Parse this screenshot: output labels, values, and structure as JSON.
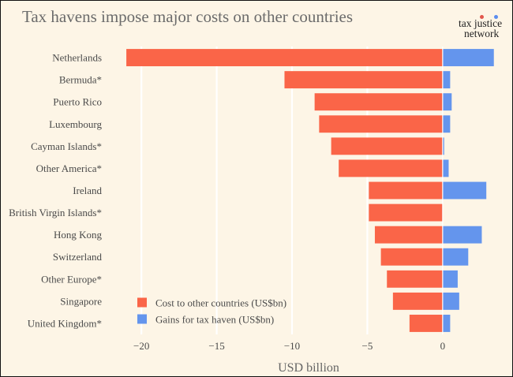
{
  "title": "Tax havens impose major costs on other countries",
  "logo": {
    "line1": "tax justice",
    "line2": "network",
    "dot_colors": [
      "#e2574c",
      "#5b8def"
    ]
  },
  "chart_data": {
    "type": "bar",
    "orientation": "horizontal",
    "xlabel": "USD billion",
    "ylabel": "",
    "xlim": [
      -22,
      4.2
    ],
    "xticks": [
      -20,
      -15,
      -10,
      -5,
      0
    ],
    "xtick_labels": [
      "−20",
      "−15",
      "−10",
      "−5",
      "0"
    ],
    "grid": true,
    "legend_position": "bottom-left",
    "categories": [
      "Netherlands",
      "Bermuda*",
      "Puerto Rico",
      "Luxembourg",
      "Cayman Islands*",
      "Other America*",
      "Ireland",
      "British Virgin Islands*",
      "Hong Kong",
      "Switzerland",
      "Other Europe*",
      "Singapore",
      "United Kingdom*"
    ],
    "series": [
      {
        "name": "Cost to other countries (US$bn)",
        "color": "#fa6548",
        "values": [
          -21.0,
          -10.5,
          -8.5,
          -8.2,
          -7.4,
          -6.9,
          -4.9,
          -4.9,
          -4.5,
          -4.1,
          -3.7,
          -3.3,
          -2.2
        ]
      },
      {
        "name": "Gains for tax haven (US$bn)",
        "color": "#6495ed",
        "values": [
          3.4,
          0.5,
          0.6,
          0.5,
          0.1,
          0.4,
          2.9,
          0.0,
          2.6,
          1.7,
          1.0,
          1.1,
          0.5
        ]
      }
    ]
  }
}
